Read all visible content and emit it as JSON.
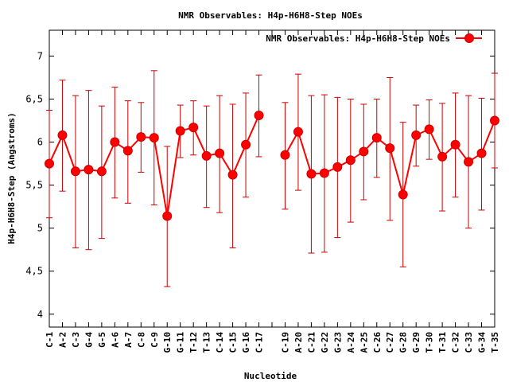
{
  "chart_data": {
    "type": "line",
    "title": "NMR Observables: H4p-H6H8-Step NOEs",
    "xlabel": "Nucleotide",
    "ylabel": "H4p-H6H8-Step (Angstroms)",
    "ylim": [
      3.85,
      7.3
    ],
    "yticks": [
      4,
      4.5,
      5,
      5.5,
      6,
      6.5,
      7
    ],
    "ytick_labels": [
      "4",
      "4,5",
      "5",
      "5,5",
      "6",
      "6,5",
      "7"
    ],
    "legend_position": "top-right",
    "grid": false,
    "colors": {
      "series": "#ff0000",
      "errorbar": "#cc0000"
    },
    "categories": [
      "C-1",
      "A-2",
      "C-3",
      "G-4",
      "G-5",
      "A-6",
      "A-7",
      "C-8",
      "C-9",
      "G-10",
      "G-11",
      "T-12",
      "T-13",
      "C-14",
      "C-15",
      "G-16",
      "C-17",
      "",
      "C-19",
      "A-20",
      "C-21",
      "G-22",
      "G-23",
      "A-24",
      "A-25",
      "C-26",
      "C-27",
      "G-28",
      "G-29",
      "T-30",
      "T-31",
      "C-32",
      "C-33",
      "G-34",
      "T-35"
    ],
    "series": [
      {
        "name": "NMR Observables: H4p-H6H8-Step NOEs",
        "values": [
          5.75,
          6.08,
          5.66,
          5.68,
          5.66,
          6.0,
          5.9,
          6.06,
          6.05,
          5.14,
          6.13,
          6.17,
          5.84,
          5.87,
          5.62,
          5.97,
          6.31,
          null,
          5.85,
          6.12,
          5.63,
          5.64,
          5.71,
          5.79,
          5.89,
          6.05,
          5.93,
          5.39,
          6.08,
          6.15,
          5.83,
          5.97,
          5.77,
          5.87,
          6.25
        ],
        "err_low": [
          5.12,
          5.43,
          4.77,
          4.75,
          4.88,
          5.35,
          5.29,
          5.65,
          5.27,
          4.32,
          5.82,
          5.85,
          5.24,
          5.18,
          4.77,
          5.36,
          5.83,
          null,
          5.22,
          5.44,
          4.71,
          4.72,
          4.89,
          5.07,
          5.33,
          5.59,
          5.09,
          4.55,
          5.72,
          5.8,
          5.2,
          5.36,
          5.0,
          5.21,
          5.7
        ],
        "err_high": [
          6.37,
          6.72,
          6.54,
          6.6,
          6.42,
          6.64,
          6.48,
          6.46,
          6.83,
          5.95,
          6.43,
          6.48,
          6.42,
          6.54,
          6.44,
          6.57,
          6.78,
          null,
          6.46,
          6.79,
          6.54,
          6.55,
          6.52,
          6.5,
          6.44,
          6.5,
          6.75,
          6.23,
          6.43,
          6.49,
          6.45,
          6.57,
          6.54,
          6.51,
          6.8
        ]
      }
    ]
  }
}
